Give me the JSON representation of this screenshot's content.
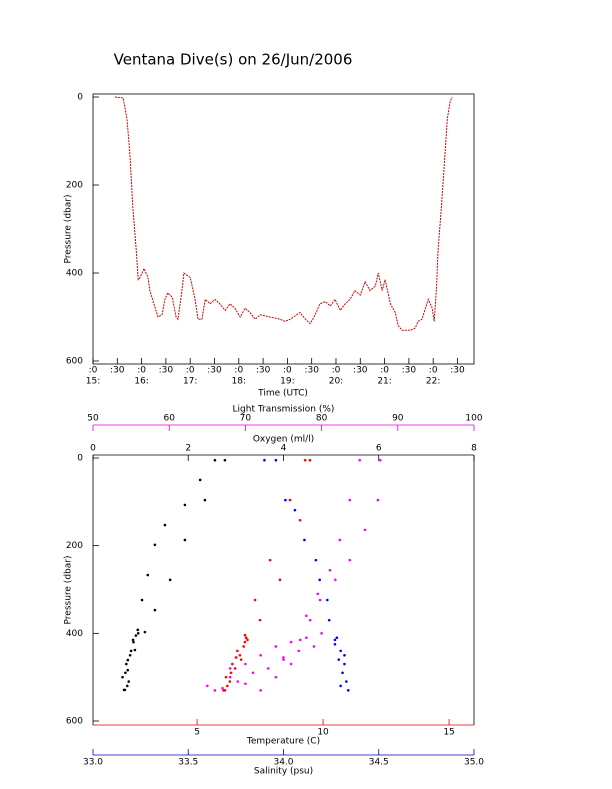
{
  "chart_data": [
    {
      "type": "line",
      "title": "Ventana Dive(s) on 26/Jun/2006",
      "x_label": "Time (UTC)",
      "y_label": "Pressure (dbar)",
      "color": "#cc0000",
      "y_reversed": true,
      "xlim": [
        15,
        22.84
      ],
      "ylim": [
        0,
        600
      ],
      "yticks": [
        0,
        200,
        400,
        600
      ],
      "xticks": [
        {
          "value": 15,
          "label": ":0"
        },
        {
          "value": 15.5,
          "label": ":30"
        },
        {
          "value": 16,
          "label": ":0"
        },
        {
          "value": 16.5,
          "label": ":30"
        },
        {
          "value": 17,
          "label": ":0"
        },
        {
          "value": 17.5,
          "label": ":30"
        },
        {
          "value": 18,
          "label": ":0"
        },
        {
          "value": 18.5,
          "label": ":30"
        },
        {
          "value": 19,
          "label": ":0"
        },
        {
          "value": 19.5,
          "label": ":30"
        },
        {
          "value": 20,
          "label": ":0"
        },
        {
          "value": 20.5,
          "label": ":30"
        },
        {
          "value": 21,
          "label": ":0"
        },
        {
          "value": 21.5,
          "label": ":30"
        },
        {
          "value": 22,
          "label": ":0"
        },
        {
          "value": 22.5,
          "label": ":30"
        }
      ],
      "hour_labels": [
        {
          "value": 15,
          "label": "15:"
        },
        {
          "value": 16,
          "label": "16:"
        },
        {
          "value": 17,
          "label": "17:"
        },
        {
          "value": 18,
          "label": "18:"
        },
        {
          "value": 19,
          "label": "19:"
        },
        {
          "value": 20,
          "label": "20:"
        },
        {
          "value": 21,
          "label": "21:"
        },
        {
          "value": 22,
          "label": "22:"
        }
      ],
      "x": [
        15.45,
        15.62,
        15.7,
        15.76,
        15.82,
        15.89,
        15.93,
        15.97,
        16.05,
        16.13,
        16.17,
        16.28,
        16.34,
        16.42,
        16.48,
        16.54,
        16.63,
        16.71,
        16.75,
        16.83,
        16.87,
        17.0,
        17.1,
        17.16,
        17.24,
        17.31,
        17.41,
        17.51,
        17.61,
        17.72,
        17.82,
        17.92,
        18.03,
        18.13,
        18.23,
        18.34,
        18.44,
        18.64,
        18.85,
        18.95,
        19.06,
        19.26,
        19.37,
        19.47,
        19.57,
        19.67,
        19.78,
        19.88,
        19.98,
        20.09,
        20.19,
        20.29,
        20.39,
        20.5,
        20.6,
        20.7,
        20.81,
        20.87,
        20.95,
        21.01,
        21.12,
        21.22,
        21.28,
        21.36,
        21.53,
        21.63,
        21.69,
        21.77,
        21.84,
        21.9,
        21.98,
        22.02,
        22.07,
        22.1,
        22.17,
        22.23,
        22.29,
        22.35,
        22.39
      ],
      "values": [
        0,
        2,
        50,
        130,
        250,
        350,
        415,
        410,
        390,
        410,
        440,
        480,
        500,
        495,
        460,
        445,
        455,
        500,
        505,
        440,
        400,
        410,
        460,
        505,
        505,
        460,
        470,
        460,
        470,
        485,
        470,
        480,
        500,
        480,
        490,
        505,
        495,
        500,
        505,
        510,
        505,
        490,
        505,
        515,
        495,
        470,
        465,
        475,
        460,
        485,
        470,
        460,
        440,
        450,
        420,
        440,
        430,
        400,
        440,
        415,
        470,
        490,
        520,
        530,
        530,
        525,
        510,
        505,
        480,
        460,
        480,
        510,
        430,
        350,
        250,
        150,
        50,
        10,
        0
      ]
    },
    {
      "type": "scatter",
      "y_label": "Pressure (dbar)",
      "y_reversed": true,
      "ylim": [
        0,
        600
      ],
      "yticks": [
        0,
        200,
        400,
        600
      ],
      "x_axes": [
        {
          "label": "Oxygen (ml/l)",
          "color": "#000000",
          "side": "top",
          "xlim": [
            0,
            8
          ],
          "xticks": [
            0,
            2,
            4,
            6,
            8
          ]
        },
        {
          "label": "Light Transmission (%)",
          "color": "#e000e0",
          "side": "top",
          "xlim": [
            50,
            100
          ],
          "xticks": [
            50,
            60,
            70,
            80,
            90,
            100
          ]
        },
        {
          "label": "Temperature (C)",
          "color": "#e00000",
          "side": "bottom",
          "xlim": [
            0.87,
            15.99
          ],
          "xticks": [
            5,
            10,
            15
          ]
        },
        {
          "label": "Salinity (psu)",
          "color": "#0000c0",
          "side": "bottom",
          "xlim": [
            33,
            35
          ],
          "xticks": [
            {
              "value": 33,
              "label": "33.0"
            },
            33.5,
            {
              "value": 34,
              "label": "34.0"
            },
            34.5,
            {
              "value": 35,
              "label": "35.0"
            }
          ]
        }
      ],
      "series": [
        {
          "axis": 0,
          "color": "#000000",
          "x": [
            2.56,
            2.25,
            1.93,
            1.51,
            1.3,
            1.15,
            1.03,
            0.94,
            0.84,
            0.73,
            0.67,
            2.77,
            2.35,
            1.93,
            1.62,
            1.3,
            1.09,
            0.88,
            0.73,
            0.65,
            0.7,
            0.78,
            0.85,
            0.62,
            0.75,
            0.9,
            0.68,
            0.8,
            0.72,
            0.95
          ],
          "values": [
            5,
            50,
            107,
            153,
            198,
            267,
            324,
            392,
            415,
            461,
            529,
            5,
            96,
            187,
            278,
            347,
            397,
            438,
            484,
            529,
            470,
            450,
            420,
            500,
            510,
            405,
            490,
            440,
            520,
            400
          ]
        },
        {
          "axis": 1,
          "color": "#ff00ff",
          "x": [
            87.7,
            87.4,
            85.7,
            83.7,
            81.8,
            79.8,
            78.5,
            77.2,
            85.0,
            83.7,
            82.4,
            81.1,
            79.5,
            78.0,
            65,
            68,
            70,
            72,
            74,
            76,
            78,
            80,
            66,
            69,
            71,
            73,
            75,
            77,
            79,
            67,
            70,
            74,
            76,
            72,
            68,
            75
          ],
          "values": [
            5,
            96,
            164,
            233,
            278,
            324,
            370,
            415,
            5,
            96,
            187,
            256,
            310,
            360,
            520,
            500,
            470,
            450,
            430,
            420,
            410,
            400,
            530,
            510,
            490,
            480,
            460,
            440,
            430,
            525,
            515,
            500,
            470,
            530,
            480,
            455
          ]
        },
        {
          "axis": 2,
          "color": "#ff0000",
          "x": [
            9.29,
            8.69,
            7.9,
            7.3,
            6.9,
            9.48,
            9.09,
            8.29,
            7.5,
            6.95,
            6.11,
            6.51,
            6.9,
            6.3,
            6.7,
            6.2,
            6.85,
            6.4,
            6.6,
            6.15,
            6.75,
            6.35,
            6.05,
            6.55,
            7.0
          ],
          "values": [
            5,
            96,
            233,
            324,
            404,
            5,
            142,
            278,
            370,
            410,
            530,
            480,
            420,
            510,
            450,
            520,
            430,
            470,
            440,
            500,
            460,
            490,
            530,
            455,
            415
          ]
        },
        {
          "axis": 3,
          "color": "#0000ff",
          "x": [
            33.9,
            34.01,
            34.11,
            34.19,
            34.24,
            34.27,
            33.96,
            34.06,
            34.17,
            34.23,
            34.28,
            34.3,
            34.32,
            34.34,
            34.29,
            34.31,
            34.33,
            34.27,
            34.3,
            34.32
          ],
          "values": [
            5,
            96,
            187,
            278,
            370,
            415,
            5,
            119,
            233,
            324,
            410,
            440,
            470,
            530,
            460,
            490,
            510,
            425,
            520,
            450
          ]
        }
      ]
    }
  ]
}
